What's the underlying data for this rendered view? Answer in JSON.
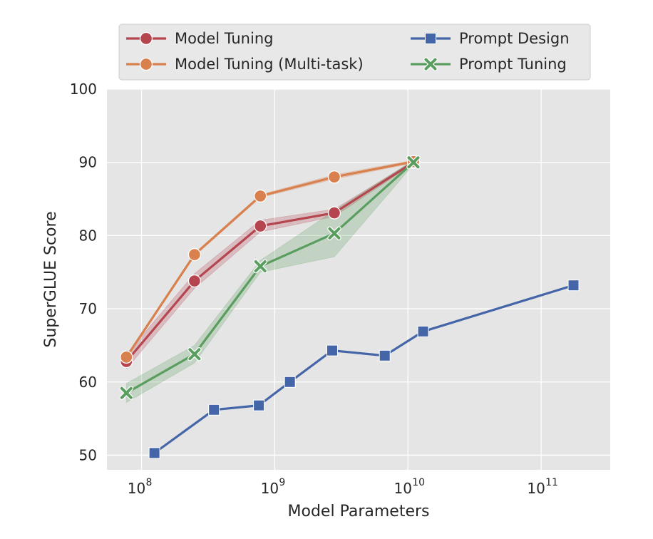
{
  "chart_data": {
    "type": "line",
    "xscale": "log",
    "xlabel": "Model Parameters",
    "ylabel": "SuperGLUE Score",
    "xlim": [
      55000000,
      330000000000
    ],
    "ylim": [
      48,
      100
    ],
    "yticks": [
      50,
      60,
      70,
      80,
      90,
      100
    ],
    "xticks": [
      {
        "value": 100000000,
        "base": "10",
        "exp": "8"
      },
      {
        "value": 1000000000,
        "base": "10",
        "exp": "9"
      },
      {
        "value": 10000000000,
        "base": "10",
        "exp": "10"
      },
      {
        "value": 100000000000,
        "base": "10",
        "exp": "11"
      }
    ],
    "grid": true,
    "legend_position": "top",
    "series": [
      {
        "name": "Model Tuning",
        "color": "#b5454f",
        "marker": "circle",
        "x": [
          77000000,
          250000000,
          780000000,
          2800000000,
          11000000000
        ],
        "y": [
          62.8,
          73.8,
          81.3,
          83.1,
          90.0
        ],
        "band_low": [
          61.8,
          72.8,
          80.5,
          82.6,
          89.8
        ],
        "band_high": [
          63.8,
          74.8,
          82.1,
          83.6,
          90.2
        ]
      },
      {
        "name": "Model Tuning (Multi-task)",
        "color": "#d8804e",
        "marker": "circle",
        "x": [
          77000000,
          250000000,
          780000000,
          2800000000,
          11000000000
        ],
        "y": [
          63.4,
          77.4,
          85.4,
          88.0,
          90.1
        ],
        "band_low": [
          63.2,
          77.2,
          85.2,
          87.7,
          89.9
        ],
        "band_high": [
          63.6,
          77.6,
          85.6,
          88.3,
          90.3
        ]
      },
      {
        "name": "Prompt Design",
        "color": "#4465a8",
        "marker": "square",
        "x": [
          125000000,
          350000000,
          760000000,
          1300000000,
          2700000000,
          6700000000,
          13000000000,
          175000000000
        ],
        "y": [
          50.3,
          56.2,
          56.8,
          60.0,
          64.3,
          63.6,
          66.9,
          73.2
        ]
      },
      {
        "name": "Prompt Tuning",
        "color": "#5a9e5f",
        "marker": "x",
        "x": [
          77000000,
          250000000,
          780000000,
          2800000000,
          11000000000
        ],
        "y": [
          58.5,
          63.8,
          75.8,
          80.3,
          90.0
        ],
        "band_low": [
          57.2,
          62.6,
          75.0,
          77.1,
          89.7
        ],
        "band_high": [
          59.8,
          65.0,
          76.6,
          83.4,
          90.3
        ]
      }
    ]
  }
}
